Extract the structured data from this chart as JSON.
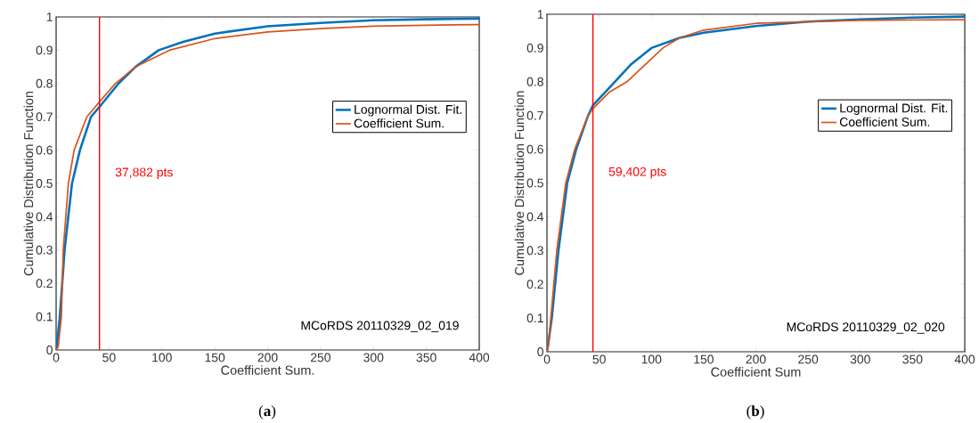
{
  "chart_data": [
    {
      "type": "line",
      "xlabel": "Coefficient Sum.",
      "ylabel": "Cumulative Distribution Function",
      "xlim": [
        0,
        400
      ],
      "ylim": [
        0,
        1
      ],
      "xticks": [
        0,
        50,
        100,
        150,
        200,
        250,
        300,
        350,
        400
      ],
      "yticks": [
        0,
        0.1,
        0.2,
        0.3,
        0.4,
        0.5,
        0.6,
        0.7,
        0.8,
        0.9,
        1
      ],
      "legend": "right",
      "series": [
        {
          "name": "Lognormal Dist. Fit.",
          "color": "#0072bd",
          "x": [
            0,
            1.5,
            3.5,
            8,
            15,
            22.5,
            33,
            41,
            59,
            75,
            97,
            120,
            150,
            200,
            250,
            300,
            350,
            400
          ],
          "values": [
            0,
            0.04,
            0.1,
            0.3,
            0.5,
            0.6,
            0.7,
            0.73,
            0.8,
            0.85,
            0.9,
            0.925,
            0.95,
            0.972,
            0.982,
            0.99,
            0.993,
            0.995
          ]
        },
        {
          "name": "Coefficient Sum.",
          "color": "#d95319",
          "x": [
            0,
            2,
            5,
            6.7,
            11.6,
            17,
            29,
            41,
            56,
            75,
            107,
            150,
            200,
            250,
            300,
            350,
            400
          ],
          "values": [
            0,
            0.01,
            0.1,
            0.3,
            0.5,
            0.6,
            0.7,
            0.745,
            0.8,
            0.85,
            0.9,
            0.935,
            0.955,
            0.965,
            0.972,
            0.975,
            0.977
          ]
        }
      ],
      "ref_lines": [
        {
          "axis": "x",
          "value": 41,
          "label": "37,882 pts",
          "color": "#ff0000"
        }
      ],
      "annotations": [
        "MCoRDS 20110329_02_019",
        "(**a**)"
      ]
    },
    {
      "type": "line",
      "xlabel": "Coefficient Sum",
      "ylabel": "Cumulative Distribution Function",
      "xlim": [
        0,
        400
      ],
      "ylim": [
        0,
        1
      ],
      "xticks": [
        0,
        50,
        100,
        150,
        200,
        250,
        300,
        350,
        400
      ],
      "yticks": [
        0,
        0.1,
        0.2,
        0.3,
        0.4,
        0.5,
        0.6,
        0.7,
        0.8,
        0.9,
        1
      ],
      "legend": "right",
      "series": [
        {
          "name": "Lognormal Dist. Fit.",
          "color": "#0072bd",
          "x": [
            0,
            1.5,
            4.6,
            11,
            19.4,
            28,
            39.4,
            44,
            65,
            80,
            100,
            127,
            150,
            200,
            250,
            300,
            350,
            400
          ],
          "values": [
            0,
            0.03,
            0.1,
            0.3,
            0.5,
            0.6,
            0.7,
            0.73,
            0.8,
            0.85,
            0.9,
            0.93,
            0.945,
            0.965,
            0.978,
            0.985,
            0.99,
            0.993
          ]
        },
        {
          "name": "Coefficient Sum.",
          "color": "#d95319",
          "x": [
            0,
            1.5,
            3.7,
            9.4,
            18,
            26.6,
            39.4,
            44,
            60,
            76.6,
            111,
            127,
            150,
            200,
            250,
            300,
            350,
            400
          ],
          "values": [
            0,
            0.02,
            0.1,
            0.3,
            0.5,
            0.6,
            0.7,
            0.72,
            0.77,
            0.8,
            0.9,
            0.93,
            0.953,
            0.973,
            0.978,
            0.982,
            0.983,
            0.984
          ]
        }
      ],
      "ref_lines": [
        {
          "axis": "x",
          "value": 44,
          "label": "59,402 pts",
          "color": "#ff0000"
        }
      ],
      "annotations": [
        "MCoRDS 20110329_02_020",
        "(**b**)"
      ]
    }
  ]
}
